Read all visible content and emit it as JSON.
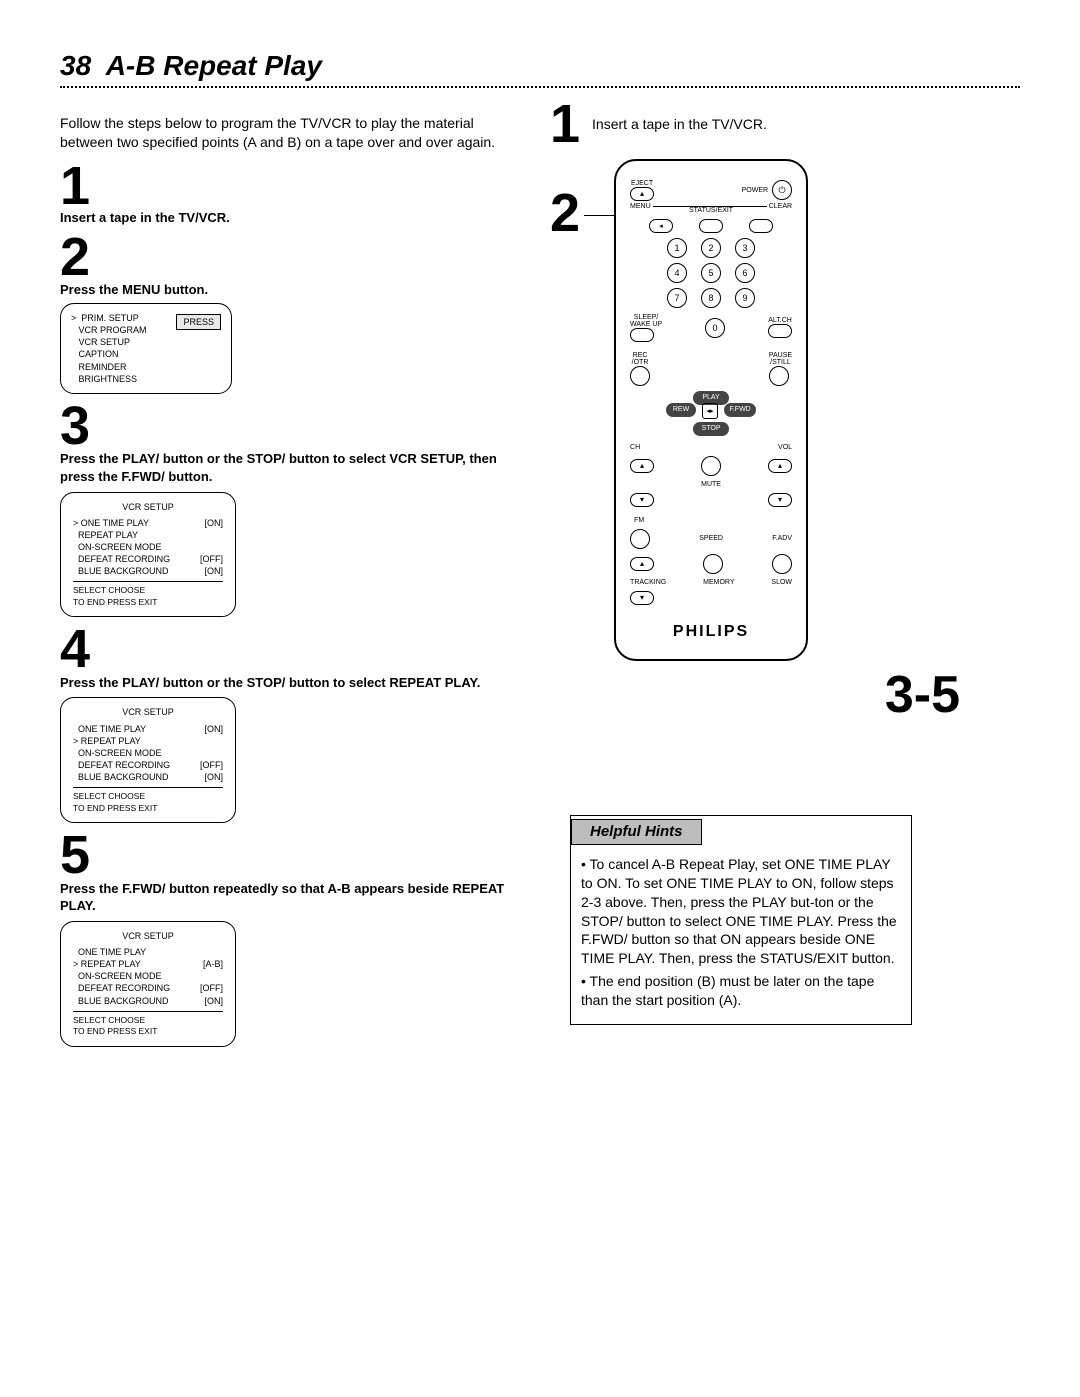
{
  "page_number": "38",
  "page_title": "A-B Repeat Play",
  "intro": "Follow the steps below to program the TV/VCR to play the material between two specified points (A and B) on a tape over and over again.",
  "left_steps": {
    "s1": {
      "num": "1",
      "text": "Insert a tape in the TV/VCR."
    },
    "s2": {
      "num": "2",
      "text": "Press the MENU button."
    },
    "s3": {
      "num": "3",
      "text": "Press the PLAY/ button or the STOP/ button to select VCR SETUP, then press the F.FWD/ button."
    },
    "s4": {
      "num": "4",
      "text": "Press the PLAY/ button or the STOP/ button to select REPEAT PLAY."
    },
    "s5": {
      "num": "5",
      "text": "Press the F.FWD/ button repeatedly so that A-B appears beside REPEAT PLAY."
    }
  },
  "menu_osd": {
    "press_label": "PRESS",
    "items": [
      "PRIM. SETUP",
      "VCR PROGRAM",
      "VCR SETUP",
      "CAPTION",
      "REMINDER",
      "BRIGHTNESS"
    ],
    "cursor_index": 0
  },
  "vcr_osd1": {
    "title": "VCR SETUP",
    "rows": [
      {
        "label": "ONE TIME PLAY",
        "val": "[ON]",
        "sel": true
      },
      {
        "label": "REPEAT PLAY",
        "val": ""
      },
      {
        "label": "ON-SCREEN MODE",
        "val": ""
      },
      {
        "label": "DEFEAT RECORDING",
        "val": "[OFF]"
      },
      {
        "label": "BLUE BACKGROUND",
        "val": "[ON]"
      }
    ],
    "footer1": "SELECT      CHOOSE",
    "footer2": "TO END PRESS EXIT"
  },
  "vcr_osd2": {
    "title": "VCR SETUP",
    "rows": [
      {
        "label": "ONE TIME PLAY",
        "val": "[ON]"
      },
      {
        "label": "REPEAT PLAY",
        "val": "",
        "sel": true
      },
      {
        "label": "ON-SCREEN MODE",
        "val": ""
      },
      {
        "label": "DEFEAT RECORDING",
        "val": "[OFF]"
      },
      {
        "label": "BLUE BACKGROUND",
        "val": "[ON]"
      }
    ],
    "footer1": "SELECT      CHOOSE",
    "footer2": "TO END PRESS EXIT"
  },
  "vcr_osd3": {
    "title": "VCR SETUP",
    "rows": [
      {
        "label": "ONE TIME PLAY",
        "val": ""
      },
      {
        "label": "REPEAT PLAY",
        "val": "[A-B]",
        "sel": true
      },
      {
        "label": "ON-SCREEN MODE",
        "val": ""
      },
      {
        "label": "DEFEAT RECORDING",
        "val": "[OFF]"
      },
      {
        "label": "BLUE BACKGROUND",
        "val": "[ON]"
      }
    ],
    "footer1": "SELECT      CHOOSE",
    "footer2": "TO END PRESS EXIT"
  },
  "right_callouts": {
    "r1": {
      "num": "1",
      "text": "Insert a tape in the TV/VCR."
    },
    "r2": {
      "num": "2"
    },
    "r35": "3-5"
  },
  "remote": {
    "top_labels": {
      "eject": "EJECT",
      "power": "POWER"
    },
    "bar_labels": [
      "MENU",
      "STATUS/EXIT",
      "CLEAR"
    ],
    "digits": [
      "1",
      "2",
      "3",
      "4",
      "5",
      "6",
      "7",
      "8",
      "9",
      "0"
    ],
    "sleep": "SLEEP/\nWAKE UP",
    "altch": "ALT.CH",
    "rec": "REC\n/OTR",
    "pause": "PAUSE\n/STILL",
    "transport": {
      "play": "PLAY",
      "rew": "REW",
      "ffwd": "F.FWD",
      "stop": "STOP"
    },
    "ch": "CH",
    "vol": "VOL",
    "mute": "MUTE",
    "fm": "FM",
    "tracking": "TRACKING",
    "memory": "MEMORY",
    "slow": "SLOW",
    "speed": "SPEED",
    "fadv": "F.ADV",
    "brand": "PHILIPS"
  },
  "hints": {
    "title": "Helpful Hints",
    "bullets": [
      "To cancel A-B Repeat Play, set ONE TIME PLAY to ON. To set ONE TIME PLAY to ON, follow steps 2-3 above. Then, press the PLAY but-ton or the STOP/ button to select ONE TIME PLAY. Press the F.FWD/ button so that ON appears beside ONE TIME PLAY. Then, press the STATUS/EXIT button.",
      "The end position (B) must be later on the tape than the start position (A)."
    ]
  }
}
